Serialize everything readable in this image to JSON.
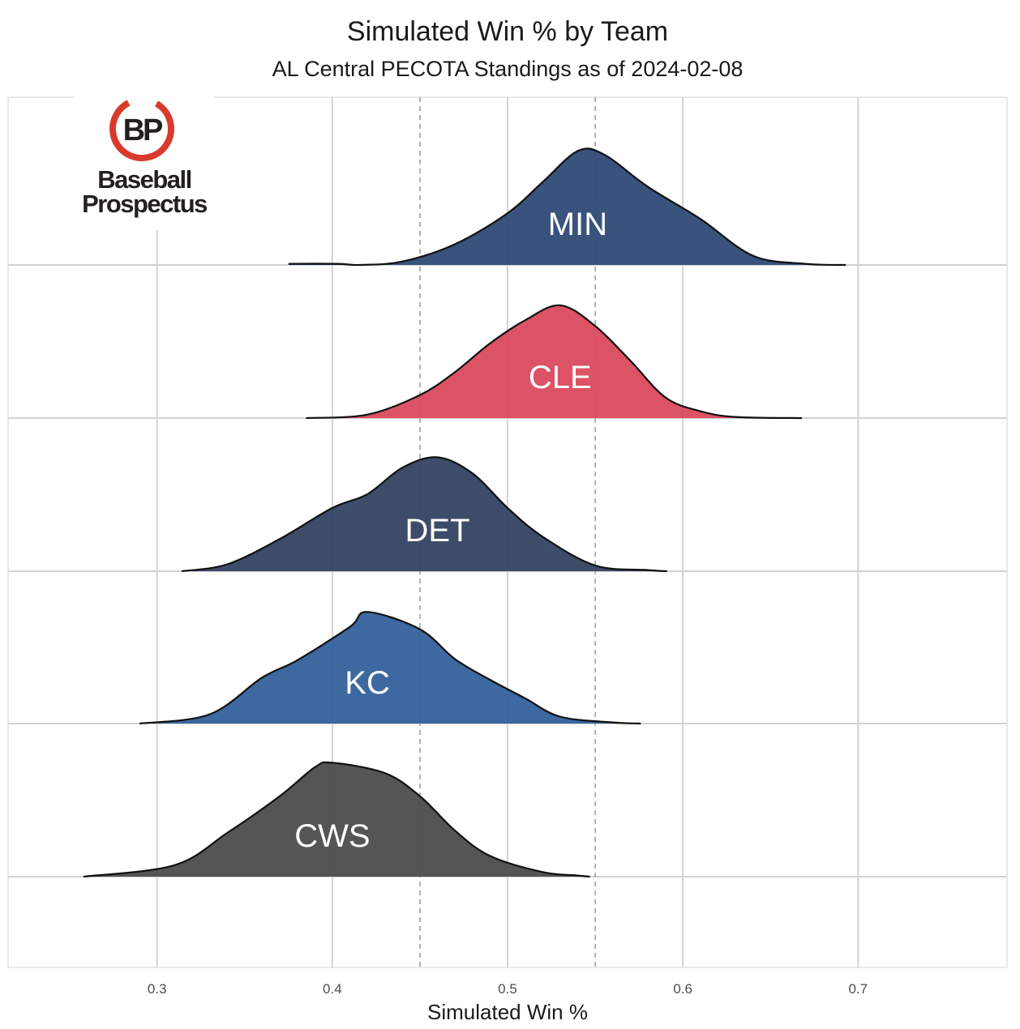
{
  "chart_data": {
    "type": "ridgeline-density",
    "title": "Simulated Win % by Team",
    "subtitle": "AL Central PECOTA Standings as of 2024-02-08",
    "xlabel": "Simulated Win %",
    "ylabel": "",
    "xlim": [
      0.215,
      0.785
    ],
    "x_ticks": [
      "0.3",
      "0.4",
      "0.5",
      "0.6",
      "0.7"
    ],
    "reference_lines": [
      0.45,
      0.55
    ],
    "grid": true,
    "legend": "none",
    "series": [
      {
        "name": "MIN",
        "color": "#2e4a76",
        "x": [
          0.375,
          0.403,
          0.416,
          0.44,
          0.47,
          0.5,
          0.52,
          0.54,
          0.555,
          0.58,
          0.61,
          0.64,
          0.67,
          0.693
        ],
        "density": [
          0.01,
          0.01,
          0.0,
          0.03,
          0.18,
          0.45,
          0.72,
          0.99,
          0.96,
          0.68,
          0.4,
          0.08,
          0.01,
          0.0
        ]
      },
      {
        "name": "CLE",
        "color": "#d94a5c",
        "x": [
          0.385,
          0.42,
          0.45,
          0.47,
          0.49,
          0.51,
          0.53,
          0.55,
          0.57,
          0.59,
          0.61,
          0.63,
          0.668
        ],
        "density": [
          0.0,
          0.03,
          0.2,
          0.4,
          0.65,
          0.85,
          0.98,
          0.8,
          0.5,
          0.18,
          0.06,
          0.01,
          0.0
        ]
      },
      {
        "name": "DET",
        "color": "#334260",
        "x": [
          0.314,
          0.34,
          0.37,
          0.4,
          0.42,
          0.44,
          0.46,
          0.48,
          0.5,
          0.52,
          0.55,
          0.58,
          0.591
        ],
        "density": [
          0.0,
          0.06,
          0.28,
          0.55,
          0.67,
          0.9,
          0.99,
          0.85,
          0.55,
          0.3,
          0.05,
          0.01,
          0.0
        ]
      },
      {
        "name": "KC",
        "color": "#33609b",
        "x": [
          0.29,
          0.33,
          0.36,
          0.38,
          0.41,
          0.42,
          0.45,
          0.47,
          0.49,
          0.51,
          0.53,
          0.56,
          0.576
        ],
        "density": [
          0.0,
          0.08,
          0.4,
          0.55,
          0.84,
          0.97,
          0.82,
          0.56,
          0.38,
          0.22,
          0.06,
          0.01,
          0.0
        ]
      },
      {
        "name": "CWS",
        "color": "#4c4c4a",
        "x": [
          0.258,
          0.31,
          0.34,
          0.37,
          0.39,
          0.4,
          0.43,
          0.45,
          0.47,
          0.49,
          0.52,
          0.54,
          0.547
        ],
        "density": [
          0.0,
          0.1,
          0.38,
          0.7,
          0.95,
          0.99,
          0.9,
          0.7,
          0.4,
          0.18,
          0.04,
          0.01,
          0.0
        ]
      }
    ]
  },
  "logo": {
    "mark": "BP",
    "line1": "Baseball",
    "line2": "Prospectus",
    "ring_color": "#d83a2e",
    "text_color": "#231f20"
  },
  "style": {
    "grid_color": "#d3d3d3",
    "reference_line_color": "#9a9a9a",
    "outline_color": "#111111",
    "label_color": "#ffffff"
  }
}
